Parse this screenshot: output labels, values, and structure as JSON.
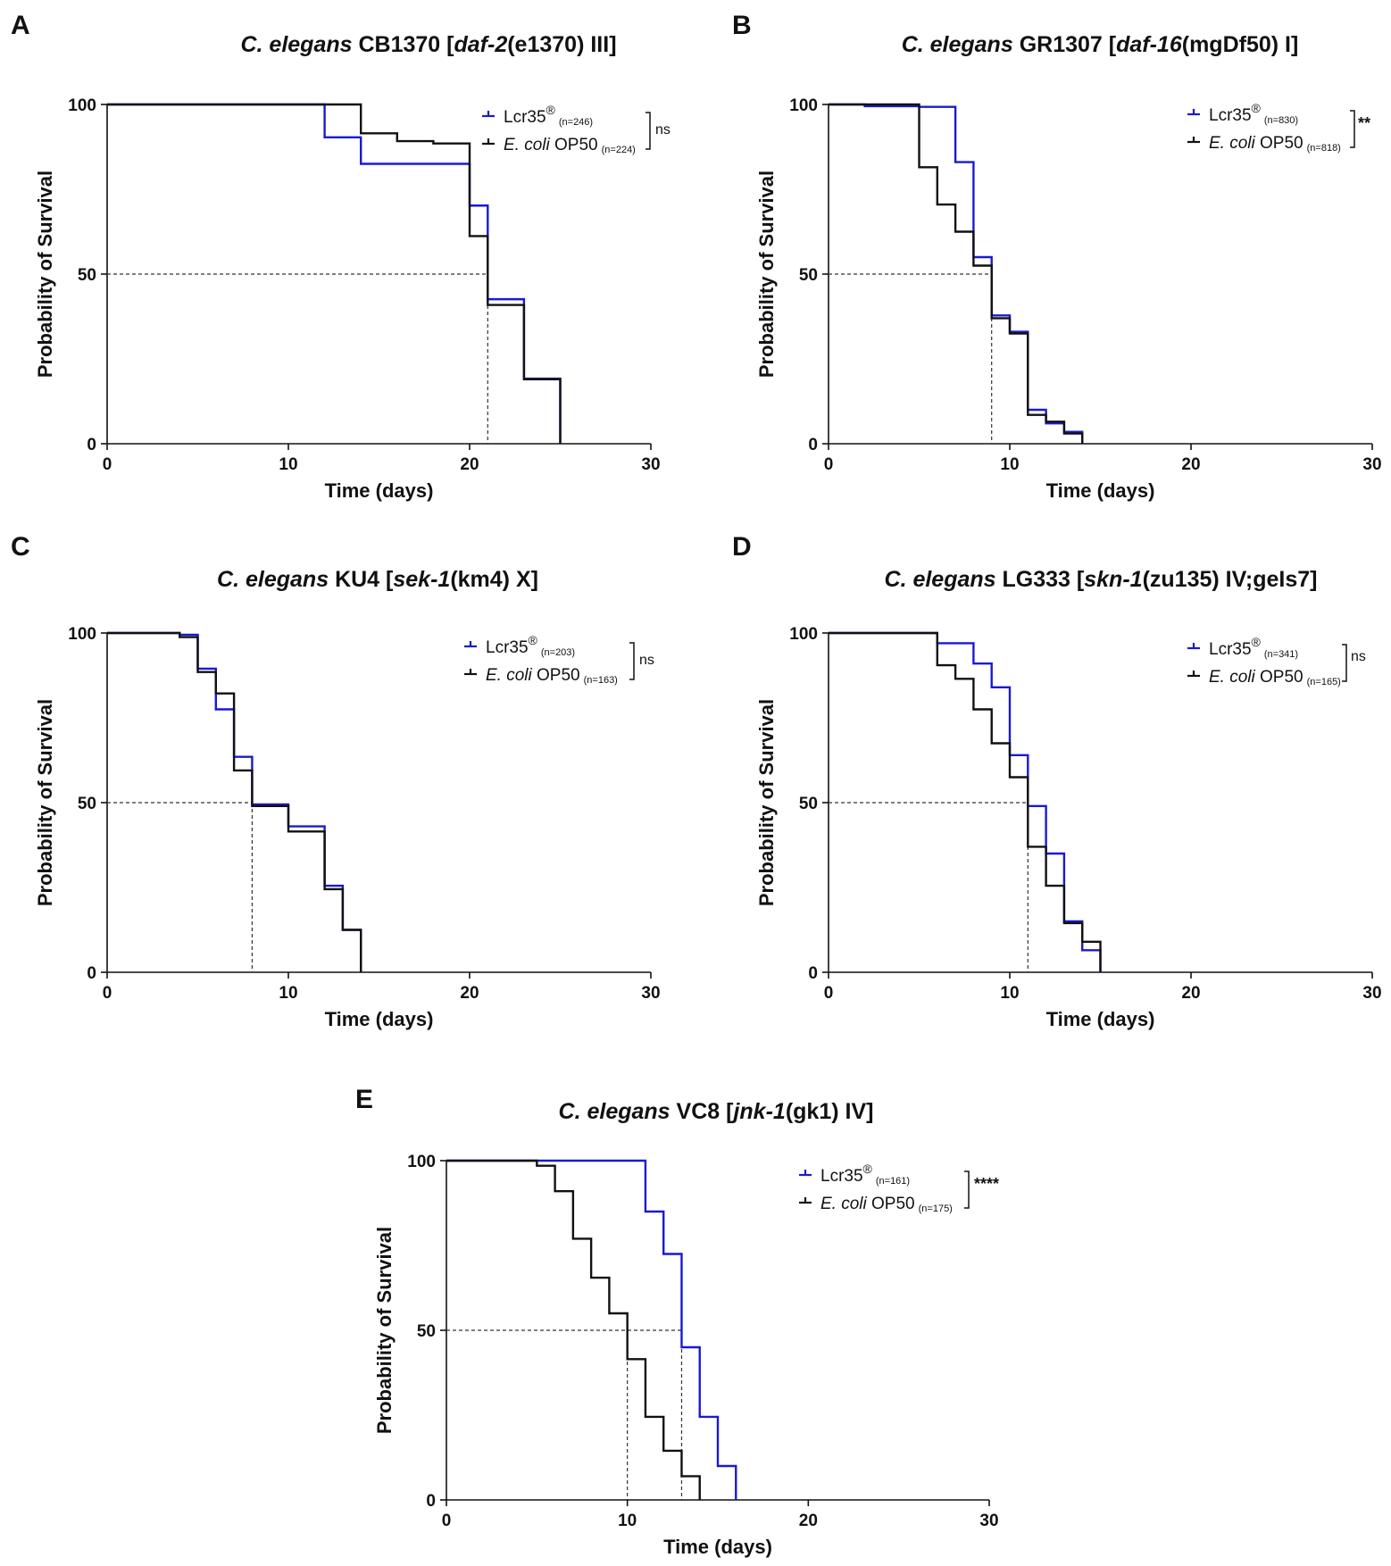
{
  "colors": {
    "lcr35": "#1a1ad0",
    "ecoli": "#111111"
  },
  "chart_data": [
    {
      "type": "line",
      "panel": "A",
      "title": {
        "species": "C. elegans",
        "strain": "CB1370",
        "gene": "daf-2",
        "allele": "(e1370) III",
        "open": "[",
        "close": "]"
      },
      "xlabel": "Time (days)",
      "ylabel": "Probability of Survival",
      "xlim": [
        0,
        30
      ],
      "ylim": [
        0,
        100
      ],
      "xticks": [
        0,
        10,
        20,
        30
      ],
      "yticks": [
        0,
        50,
        100
      ],
      "median_lines": [
        21
      ],
      "significance": "ns",
      "series": [
        {
          "name": "Lcr35",
          "superscript": "®",
          "n": "(n=246)",
          "color_key": "lcr35",
          "steps": [
            [
              0,
              100
            ],
            [
              12,
              90.3
            ],
            [
              14,
              82.5
            ],
            [
              20,
              70.2
            ],
            [
              21,
              42.6
            ],
            [
              23,
              19.2
            ],
            [
              25,
              0
            ]
          ]
        },
        {
          "name": "E. coli",
          "name_suffix": " OP50",
          "n": "(n=224)",
          "color_key": "ecoli",
          "steps": [
            [
              0,
              100
            ],
            [
              14,
              91.5
            ],
            [
              16,
              89.2
            ],
            [
              18,
              88.5
            ],
            [
              20,
              61.2
            ],
            [
              21,
              40.9
            ],
            [
              23,
              19
            ],
            [
              25,
              0
            ]
          ]
        }
      ]
    },
    {
      "type": "line",
      "panel": "B",
      "title": {
        "species": "C. elegans",
        "strain": "GR1307",
        "gene": "daf-16",
        "allele": "(mgDf50) I",
        "open": "[",
        "close": "]"
      },
      "xlabel": "Time (days)",
      "ylabel": "Probability of Survival",
      "xlim": [
        0,
        30
      ],
      "ylim": [
        0,
        100
      ],
      "xticks": [
        0,
        10,
        20,
        30
      ],
      "yticks": [
        0,
        50,
        100
      ],
      "median_lines": [
        9
      ],
      "significance": "**",
      "series": [
        {
          "name": "Lcr35",
          "superscript": "®",
          "n": "(n=830)",
          "color_key": "lcr35",
          "steps": [
            [
              0,
              100
            ],
            [
              2,
              99.5
            ],
            [
              5,
              99.3
            ],
            [
              7,
              83
            ],
            [
              8,
              55
            ],
            [
              9,
              37.8
            ],
            [
              10,
              33
            ],
            [
              11,
              10
            ],
            [
              12,
              6
            ],
            [
              13,
              3.5
            ],
            [
              14,
              0
            ]
          ]
        },
        {
          "name": "E. coli",
          "name_suffix": " OP50",
          "n": "(n=818)",
          "color_key": "ecoli",
          "steps": [
            [
              0,
              100
            ],
            [
              5,
              81.5
            ],
            [
              6,
              70.5
            ],
            [
              7,
              62.5
            ],
            [
              8,
              52.5
            ],
            [
              9,
              37
            ],
            [
              10,
              32.5
            ],
            [
              11,
              8.5
            ],
            [
              12,
              6.5
            ],
            [
              13,
              3
            ],
            [
              14,
              0
            ]
          ]
        }
      ]
    },
    {
      "type": "line",
      "panel": "C",
      "title": {
        "species": "C. elegans",
        "strain": "KU4",
        "gene": "sek-1",
        "allele": "(km4) X",
        "open": "[",
        "close": "]"
      },
      "xlabel": "Time (days)",
      "ylabel": "Probability of Survival",
      "xlim": [
        0,
        30
      ],
      "ylim": [
        0,
        100
      ],
      "xticks": [
        0,
        10,
        20,
        30
      ],
      "yticks": [
        0,
        50,
        100
      ],
      "median_lines": [
        8
      ],
      "significance": "ns",
      "series": [
        {
          "name": "Lcr35",
          "superscript": "®",
          "n": "(n=203)",
          "color_key": "lcr35",
          "steps": [
            [
              0,
              100
            ],
            [
              4,
              99.5
            ],
            [
              5,
              89.5
            ],
            [
              6,
              77.5
            ],
            [
              7,
              63.5
            ],
            [
              8,
              49.5
            ],
            [
              10,
              43
            ],
            [
              12,
              25.5
            ],
            [
              13,
              12.5
            ],
            [
              14,
              0
            ]
          ]
        },
        {
          "name": "E. coli",
          "name_suffix": " OP50",
          "n": "(n=163)",
          "color_key": "ecoli",
          "steps": [
            [
              0,
              100
            ],
            [
              4,
              98.8
            ],
            [
              5,
              88.5
            ],
            [
              6,
              82.2
            ],
            [
              7,
              59.5
            ],
            [
              8,
              49
            ],
            [
              10,
              41.5
            ],
            [
              12,
              24.5
            ],
            [
              13,
              12.5
            ],
            [
              14,
              0
            ]
          ]
        }
      ]
    },
    {
      "type": "line",
      "panel": "D",
      "title": {
        "species": "C. elegans",
        "strain": "LG333",
        "gene": "skn-1",
        "allele": "(zu135) IV;geIs7",
        "open": "[",
        "close": "]"
      },
      "xlabel": "Time (days)",
      "ylabel": "Probability of Survival",
      "xlim": [
        0,
        30
      ],
      "ylim": [
        0,
        100
      ],
      "xticks": [
        0,
        10,
        20,
        30
      ],
      "yticks": [
        0,
        50,
        100
      ],
      "median_lines": [
        11
      ],
      "significance": "ns",
      "series": [
        {
          "name": "Lcr35",
          "superscript": "®",
          "n": "(n=341)",
          "color_key": "lcr35",
          "steps": [
            [
              0,
              100
            ],
            [
              6,
              97
            ],
            [
              8,
              91
            ],
            [
              9,
              84
            ],
            [
              10,
              64
            ],
            [
              11,
              49
            ],
            [
              12,
              35
            ],
            [
              13,
              15
            ],
            [
              14,
              6.5
            ],
            [
              15,
              0
            ]
          ]
        },
        {
          "name": "E. coli",
          "name_suffix": " OP50",
          "n": "(n=165)",
          "color_key": "ecoli",
          "steps": [
            [
              0,
              100
            ],
            [
              6,
              90.5
            ],
            [
              7,
              86.5
            ],
            [
              8,
              77.5
            ],
            [
              9,
              67.5
            ],
            [
              10,
              57.5
            ],
            [
              11,
              37
            ],
            [
              12,
              25.5
            ],
            [
              13,
              14.5
            ],
            [
              14,
              9
            ],
            [
              15,
              0
            ]
          ]
        }
      ]
    },
    {
      "type": "line",
      "panel": "E",
      "title": {
        "species": "C. elegans",
        "strain": "VC8",
        "gene": "jnk-1",
        "allele": "(gk1) IV",
        "open": "[",
        "close": "]"
      },
      "xlabel": "Time (days)",
      "ylabel": "Probability of Survival",
      "xlim": [
        0,
        30
      ],
      "ylim": [
        0,
        100
      ],
      "xticks": [
        0,
        10,
        20,
        30
      ],
      "yticks": [
        0,
        50,
        100
      ],
      "median_lines": [
        10,
        13
      ],
      "significance": "****",
      "series": [
        {
          "name": "Lcr35",
          "superscript": "®",
          "n": "(n=161)",
          "color_key": "lcr35",
          "steps": [
            [
              0,
              100
            ],
            [
              11,
              85
            ],
            [
              12,
              72.5
            ],
            [
              13,
              45
            ],
            [
              14,
              24.5
            ],
            [
              15,
              10
            ],
            [
              16,
              0
            ]
          ]
        },
        {
          "name": "E. coli",
          "name_suffix": " OP50",
          "n": "(n=175)",
          "color_key": "ecoli",
          "steps": [
            [
              0,
              100
            ],
            [
              5,
              98.5
            ],
            [
              6,
              91
            ],
            [
              7,
              77
            ],
            [
              8,
              65.5
            ],
            [
              9,
              55
            ],
            [
              10,
              41.5
            ],
            [
              11,
              24.5
            ],
            [
              12,
              14.5
            ],
            [
              13,
              7
            ],
            [
              14,
              0
            ]
          ]
        }
      ]
    }
  ]
}
